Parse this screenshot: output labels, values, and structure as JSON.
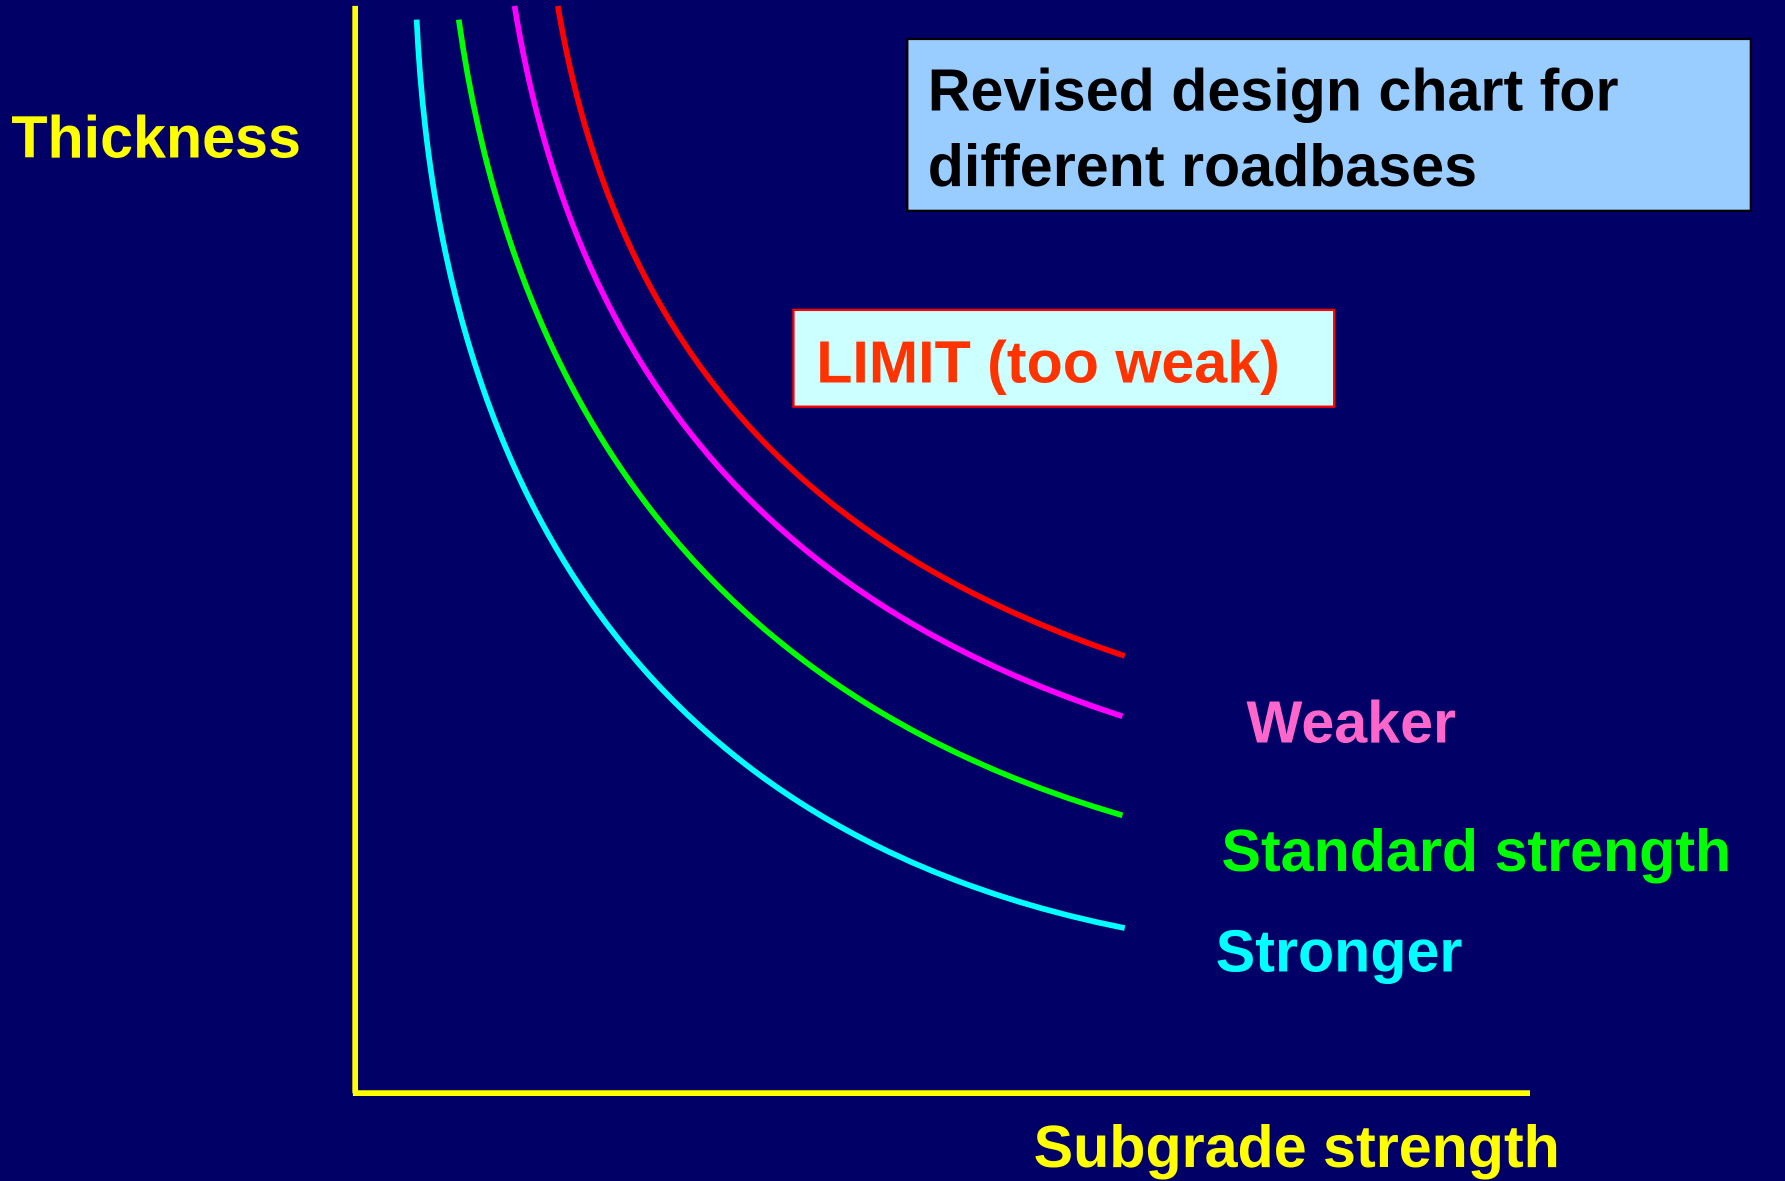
{
  "axes": {
    "y_label": "Thickness",
    "x_label": "Subgrade strength"
  },
  "title_box": {
    "lines": [
      "Revised design chart for",
      "different roadbases"
    ]
  },
  "limit_box": {
    "label": "LIMIT (too weak)"
  },
  "curve_labels": {
    "weaker": "Weaker",
    "standard": "Standard strength",
    "stronger": "Stronger"
  }
}
